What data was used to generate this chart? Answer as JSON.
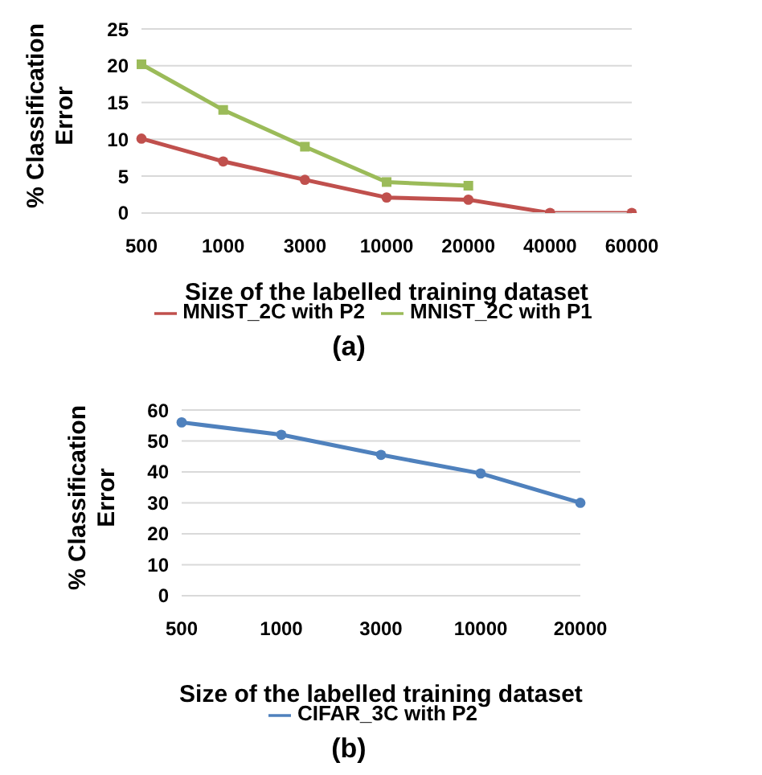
{
  "chart_data": [
    {
      "type": "line",
      "categories": [
        "500",
        "1000",
        "3000",
        "10000",
        "20000",
        "40000",
        "60000"
      ],
      "xlabel": "Size of the labelled training dataset",
      "ylabel": "% Classification Error",
      "ylim": [
        0,
        25
      ],
      "yticks": [
        0,
        5,
        10,
        15,
        20,
        25
      ],
      "grid": "y",
      "legend": "bottom",
      "annotations": [
        "(a)"
      ],
      "series": [
        {
          "name": "MNIST_2C with P2",
          "color": "#c0504d",
          "marker": "circle",
          "values": [
            10.1,
            7,
            4.5,
            2.1,
            1.8,
            0,
            0
          ]
        },
        {
          "name": "MNIST_2C with P1",
          "color": "#9bbb59",
          "marker": "square",
          "values": [
            20.2,
            14,
            9,
            4.2,
            3.7,
            null,
            null
          ]
        }
      ]
    },
    {
      "type": "line",
      "categories": [
        "500",
        "1000",
        "3000",
        "10000",
        "20000"
      ],
      "xlabel": "Size of the labelled training dataset",
      "ylabel": "% Classification Error",
      "ylim": [
        0,
        60
      ],
      "yticks": [
        0,
        10,
        20,
        30,
        40,
        50,
        60
      ],
      "grid": "y",
      "legend": "bottom",
      "annotations": [
        "(b)"
      ],
      "series": [
        {
          "name": "CIFAR_3C with P2",
          "color": "#4f81bd",
          "marker": "circle",
          "values": [
            56,
            52,
            45.5,
            39.5,
            30
          ]
        }
      ]
    }
  ]
}
